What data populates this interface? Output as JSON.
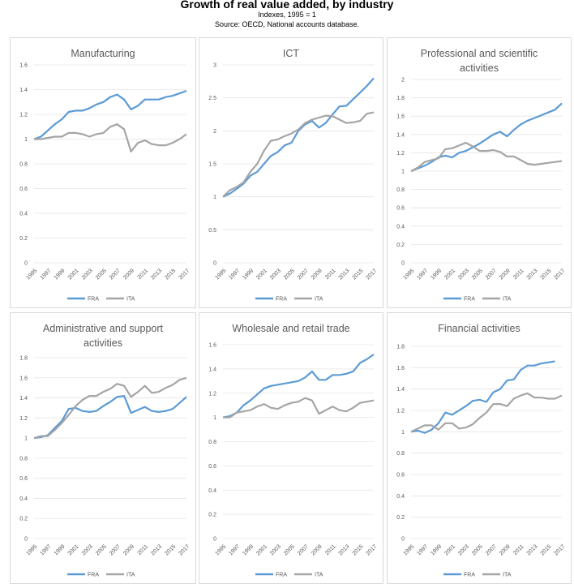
{
  "header": {
    "title": "Growth of real value added, by industry",
    "subtitle": "Indexes, 1995 = 1",
    "source": "Source: OECD, National accounts database."
  },
  "colors": {
    "FRA": "#5b9bd5",
    "ITA": "#a5a5a5",
    "border": "#d9d9d9",
    "grid": "#e4e4e4",
    "text": "#595959"
  },
  "chart_data": [
    {
      "type": "line",
      "title": [
        "Manufacturing"
      ],
      "xlabel": "",
      "ylabel": "",
      "categories": [
        "1995",
        "1997",
        "1999",
        "2001",
        "2003",
        "2005",
        "2007",
        "2009",
        "2011",
        "2013",
        "2015",
        "2017"
      ],
      "x": [
        1995,
        1996,
        1997,
        1998,
        1999,
        2000,
        2001,
        2002,
        2003,
        2004,
        2005,
        2006,
        2007,
        2008,
        2009,
        2010,
        2011,
        2012,
        2013,
        2014,
        2015,
        2016,
        2017
      ],
      "yticks": [
        "0",
        "0.2",
        "0.4",
        "0.6",
        "0.8",
        "1",
        "1.2",
        "1.4",
        "1.6"
      ],
      "ylim": [
        0,
        1.6
      ],
      "legend": "bottom",
      "series": [
        {
          "name": "FRA",
          "values": [
            1.0,
            1.02,
            1.07,
            1.12,
            1.16,
            1.22,
            1.23,
            1.23,
            1.25,
            1.28,
            1.3,
            1.34,
            1.36,
            1.32,
            1.24,
            1.27,
            1.32,
            1.32,
            1.32,
            1.34,
            1.35,
            1.37,
            1.39
          ]
        },
        {
          "name": "ITA",
          "values": [
            1.0,
            1.0,
            1.01,
            1.02,
            1.02,
            1.05,
            1.05,
            1.04,
            1.02,
            1.04,
            1.05,
            1.1,
            1.12,
            1.08,
            0.9,
            0.97,
            0.99,
            0.96,
            0.95,
            0.95,
            0.97,
            1.0,
            1.04
          ]
        }
      ]
    },
    {
      "type": "line",
      "title": [
        "ICT"
      ],
      "xlabel": "",
      "ylabel": "",
      "categories": [
        "1995",
        "1997",
        "1999",
        "2001",
        "2003",
        "2005",
        "2007",
        "2009",
        "2011",
        "2013",
        "2015",
        "2017"
      ],
      "x": [
        1995,
        1996,
        1997,
        1998,
        1999,
        2000,
        2001,
        2002,
        2003,
        2004,
        2005,
        2006,
        2007,
        2008,
        2009,
        2010,
        2011,
        2012,
        2013,
        2014,
        2015,
        2016,
        2017
      ],
      "yticks": [
        "0",
        "0.5",
        "1",
        "1.5",
        "2",
        "2.5",
        "3"
      ],
      "ylim": [
        0,
        3
      ],
      "legend": "bottom",
      "series": [
        {
          "name": "FRA",
          "values": [
            1.0,
            1.05,
            1.12,
            1.2,
            1.32,
            1.38,
            1.5,
            1.62,
            1.68,
            1.78,
            1.82,
            2.0,
            2.1,
            2.15,
            2.05,
            2.12,
            2.25,
            2.37,
            2.38,
            2.48,
            2.58,
            2.68,
            2.8
          ]
        },
        {
          "name": "ITA",
          "values": [
            1.0,
            1.1,
            1.15,
            1.22,
            1.38,
            1.5,
            1.7,
            1.85,
            1.87,
            1.92,
            1.96,
            2.02,
            2.12,
            2.17,
            2.2,
            2.23,
            2.22,
            2.17,
            2.12,
            2.13,
            2.15,
            2.26,
            2.28
          ]
        }
      ]
    },
    {
      "type": "line",
      "title": [
        "Professional and scientific",
        "activities"
      ],
      "xlabel": "",
      "ylabel": "",
      "categories": [
        "1995",
        "1997",
        "1999",
        "2001",
        "2003",
        "2005",
        "2007",
        "2009",
        "2011",
        "2013",
        "2015",
        "2017"
      ],
      "x": [
        1995,
        1996,
        1997,
        1998,
        1999,
        2000,
        2001,
        2002,
        2003,
        2004,
        2005,
        2006,
        2007,
        2008,
        2009,
        2010,
        2011,
        2012,
        2013,
        2014,
        2015,
        2016,
        2017
      ],
      "yticks": [
        "0",
        "0.2",
        "0.4",
        "0.6",
        "0.8",
        "1",
        "1.2",
        "1.4",
        "1.6",
        "1.8",
        "2"
      ],
      "ylim": [
        0,
        2
      ],
      "legend": "bottom",
      "series": [
        {
          "name": "FRA",
          "values": [
            1.0,
            1.03,
            1.06,
            1.1,
            1.15,
            1.17,
            1.15,
            1.2,
            1.22,
            1.26,
            1.3,
            1.35,
            1.4,
            1.43,
            1.38,
            1.45,
            1.51,
            1.55,
            1.58,
            1.61,
            1.64,
            1.67,
            1.74
          ]
        },
        {
          "name": "ITA",
          "values": [
            1.0,
            1.04,
            1.1,
            1.12,
            1.14,
            1.24,
            1.25,
            1.28,
            1.31,
            1.27,
            1.22,
            1.22,
            1.23,
            1.21,
            1.16,
            1.16,
            1.12,
            1.08,
            1.07,
            1.08,
            1.09,
            1.1,
            1.11
          ]
        }
      ]
    },
    {
      "type": "line",
      "title": [
        "Administrative and support",
        "activities"
      ],
      "xlabel": "",
      "ylabel": "",
      "categories": [
        "1995",
        "1997",
        "1999",
        "2001",
        "2003",
        "2005",
        "2007",
        "2009",
        "2011",
        "2013",
        "2015",
        "2017"
      ],
      "x": [
        1995,
        1996,
        1997,
        1998,
        1999,
        2000,
        2001,
        2002,
        2003,
        2004,
        2005,
        2006,
        2007,
        2008,
        2009,
        2010,
        2011,
        2012,
        2013,
        2014,
        2015,
        2016,
        2017
      ],
      "yticks": [
        "0",
        "0.2",
        "0.4",
        "0.6",
        "0.8",
        "1",
        "1.2",
        "1.4",
        "1.6",
        "1.8"
      ],
      "ylim": [
        0,
        1.8
      ],
      "legend": "bottom",
      "series": [
        {
          "name": "FRA",
          "values": [
            1.0,
            1.01,
            1.03,
            1.1,
            1.17,
            1.29,
            1.3,
            1.27,
            1.26,
            1.27,
            1.32,
            1.36,
            1.41,
            1.42,
            1.25,
            1.28,
            1.31,
            1.27,
            1.26,
            1.27,
            1.29,
            1.35,
            1.41
          ]
        },
        {
          "name": "ITA",
          "values": [
            1.0,
            1.02,
            1.02,
            1.08,
            1.15,
            1.23,
            1.32,
            1.38,
            1.42,
            1.42,
            1.46,
            1.49,
            1.54,
            1.52,
            1.41,
            1.46,
            1.52,
            1.45,
            1.46,
            1.5,
            1.53,
            1.58,
            1.6
          ]
        }
      ]
    },
    {
      "type": "line",
      "title": [
        "Wholesale and retail trade"
      ],
      "xlabel": "",
      "ylabel": "",
      "categories": [
        "1995",
        "1997",
        "1999",
        "2001",
        "2003",
        "2005",
        "2007",
        "2009",
        "2011",
        "2013",
        "2015",
        "2017"
      ],
      "x": [
        1995,
        1996,
        1997,
        1998,
        1999,
        2000,
        2001,
        2002,
        2003,
        2004,
        2005,
        2006,
        2007,
        2008,
        2009,
        2010,
        2011,
        2012,
        2013,
        2014,
        2015,
        2016,
        2017
      ],
      "yticks": [
        "0",
        "0.2",
        "0.4",
        "0.6",
        "0.8",
        "1",
        "1.2",
        "1.4",
        "1.6"
      ],
      "ylim": [
        0,
        1.6
      ],
      "legend": "bottom",
      "series": [
        {
          "name": "FRA",
          "values": [
            1.0,
            1.01,
            1.04,
            1.1,
            1.14,
            1.19,
            1.24,
            1.26,
            1.27,
            1.28,
            1.29,
            1.3,
            1.33,
            1.38,
            1.31,
            1.31,
            1.35,
            1.35,
            1.36,
            1.38,
            1.45,
            1.48,
            1.52
          ]
        },
        {
          "name": "ITA",
          "values": [
            1.0,
            1.0,
            1.04,
            1.05,
            1.06,
            1.09,
            1.11,
            1.08,
            1.07,
            1.1,
            1.12,
            1.13,
            1.16,
            1.14,
            1.03,
            1.06,
            1.09,
            1.06,
            1.05,
            1.08,
            1.12,
            1.13,
            1.14
          ]
        }
      ]
    },
    {
      "type": "line",
      "title": [
        "Financial activities"
      ],
      "xlabel": "",
      "ylabel": "",
      "categories": [
        "1995",
        "1997",
        "1999",
        "2001",
        "2003",
        "2005",
        "2007",
        "2009",
        "2011",
        "2013",
        "2015",
        "2017"
      ],
      "x": [
        1995,
        1996,
        1997,
        1998,
        1999,
        2000,
        2001,
        2002,
        2003,
        2004,
        2005,
        2006,
        2007,
        2008,
        2009,
        2010,
        2011,
        2012,
        2013,
        2014,
        2015,
        2016,
        2017
      ],
      "yticks": [
        "0",
        "0.2",
        "0.4",
        "0.6",
        "0.8",
        "1",
        "1.2",
        "1.4",
        "1.6",
        "1.8"
      ],
      "ylim": [
        0,
        1.8
      ],
      "legend": "bottom",
      "series": [
        {
          "name": "FRA",
          "values": [
            1.0,
            1.01,
            0.99,
            1.02,
            1.08,
            1.18,
            1.16,
            1.2,
            1.24,
            1.29,
            1.3,
            1.28,
            1.37,
            1.4,
            1.48,
            1.49,
            1.58,
            1.62,
            1.62,
            1.64,
            1.65,
            1.66,
            null
          ]
        },
        {
          "name": "ITA",
          "values": [
            1.0,
            1.03,
            1.06,
            1.06,
            1.02,
            1.08,
            1.08,
            1.03,
            1.04,
            1.07,
            1.13,
            1.18,
            1.26,
            1.26,
            1.24,
            1.31,
            1.34,
            1.36,
            1.32,
            1.32,
            1.31,
            1.31,
            1.34
          ]
        }
      ]
    }
  ]
}
